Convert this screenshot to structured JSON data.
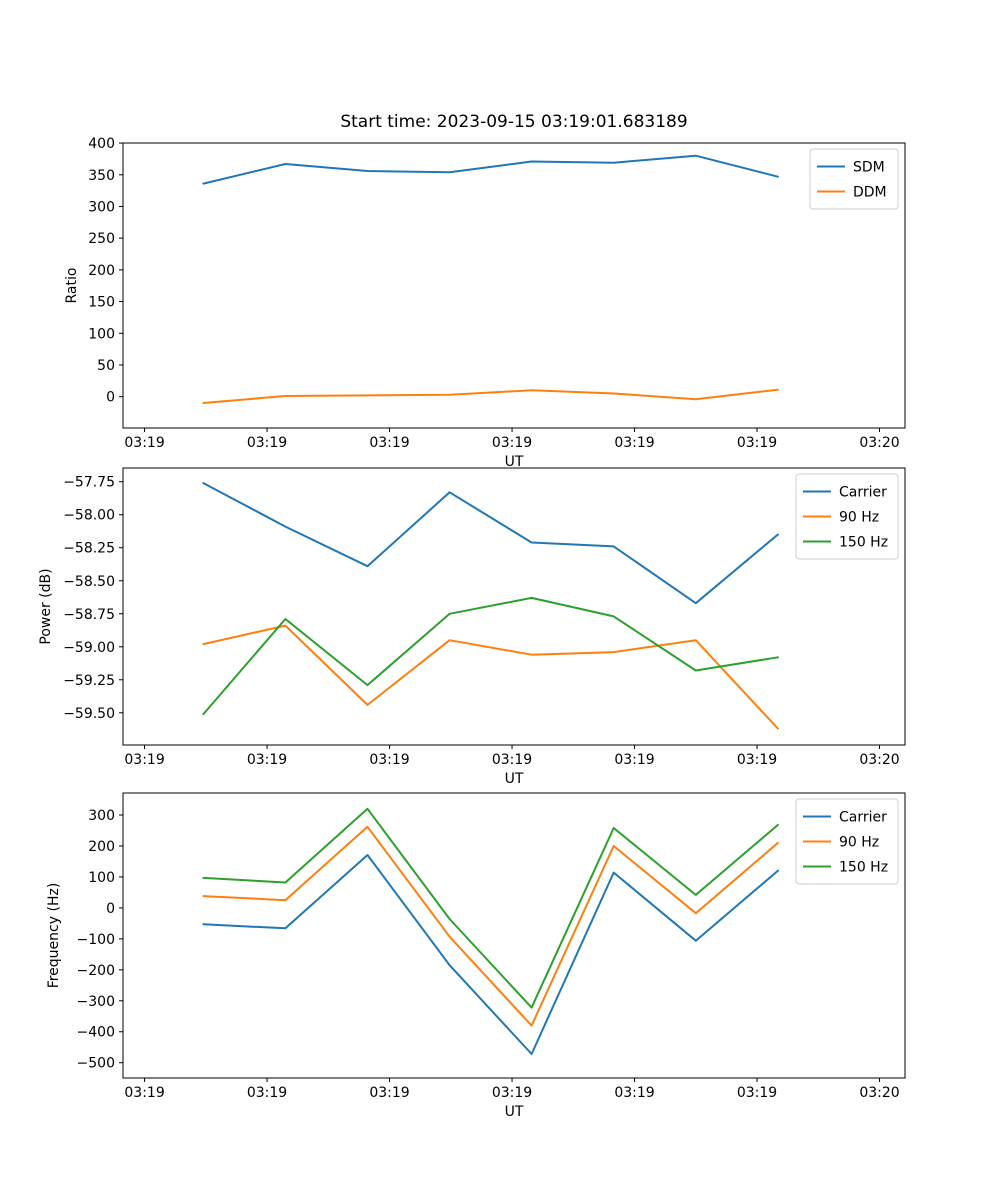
{
  "figure": {
    "title": "Start time: 2023-09-15 03:19:01.683189",
    "background": "#ffffff"
  },
  "colors": {
    "blue": "#1f77b4",
    "orange": "#ff7f0e",
    "green": "#2ca02c",
    "axis": "#000000",
    "legend_border": "#cccccc"
  },
  "chart_data": [
    {
      "type": "line",
      "title": "",
      "xlabel": "UT",
      "ylabel": "Ratio",
      "grid": false,
      "legend_position": "upper right",
      "x_seconds": [
        4.8,
        11.5,
        18.2,
        24.9,
        31.6,
        38.3,
        45.0,
        51.7
      ],
      "xlim_seconds": [
        -1.76,
        62.08
      ],
      "xticks": {
        "t": [
          0,
          10,
          20,
          30,
          40,
          50,
          60
        ],
        "labels": [
          "03:19",
          "03:19",
          "03:19",
          "03:19",
          "03:19",
          "03:19",
          "03:20"
        ]
      },
      "ylim": [
        -49.4,
        400.1
      ],
      "yticks": {
        "v": [
          0,
          50,
          100,
          150,
          200,
          250,
          300,
          350,
          400
        ],
        "labels": [
          "0",
          "50",
          "100",
          "150",
          "200",
          "250",
          "300",
          "350",
          "400"
        ]
      },
      "series": [
        {
          "name": "SDM",
          "color": "#1f77b4",
          "values": [
            336,
            367,
            356,
            354,
            371,
            369,
            380,
            347
          ]
        },
        {
          "name": "DDM",
          "color": "#ff7f0e",
          "values": [
            -10,
            1,
            2,
            3,
            10,
            5,
            -4,
            11
          ]
        }
      ]
    },
    {
      "type": "line",
      "title": "",
      "xlabel": "UT",
      "ylabel": "Power (dB)",
      "grid": false,
      "legend_position": "upper right",
      "x_seconds": [
        4.8,
        11.5,
        18.2,
        24.9,
        31.6,
        38.3,
        45.0,
        51.7
      ],
      "xlim_seconds": [
        -1.76,
        62.08
      ],
      "xticks": {
        "t": [
          0,
          10,
          20,
          30,
          40,
          50,
          60
        ],
        "labels": [
          "03:19",
          "03:19",
          "03:19",
          "03:19",
          "03:19",
          "03:19",
          "03:20"
        ]
      },
      "ylim": [
        -59.744,
        -57.646
      ],
      "yticks": {
        "v": [
          -57.75,
          -58.0,
          -58.25,
          -58.5,
          -58.75,
          -59.0,
          -59.25,
          -59.5
        ],
        "labels": [
          "−57.75",
          "−58.00",
          "−58.25",
          "−58.50",
          "−58.75",
          "−59.00",
          "−59.25",
          "−59.50"
        ]
      },
      "series": [
        {
          "name": "Carrier",
          "color": "#1f77b4",
          "values": [
            -57.76,
            -58.09,
            -58.39,
            -57.83,
            -58.21,
            -58.24,
            -58.67,
            -58.15
          ]
        },
        {
          "name": "90 Hz",
          "color": "#ff7f0e",
          "values": [
            -58.98,
            -58.84,
            -59.44,
            -58.95,
            -59.06,
            -59.04,
            -58.95,
            -59.62
          ]
        },
        {
          "name": "150 Hz",
          "color": "#2ca02c",
          "values": [
            -59.51,
            -58.79,
            -59.29,
            -58.75,
            -58.63,
            -58.77,
            -59.18,
            -59.08
          ]
        }
      ]
    },
    {
      "type": "line",
      "title": "",
      "xlabel": "UT",
      "ylabel": "Frequency (Hz)",
      "grid": false,
      "legend_position": "upper right",
      "x_seconds": [
        4.8,
        11.5,
        18.2,
        24.9,
        31.6,
        38.3,
        45.0,
        51.7
      ],
      "xlim_seconds": [
        -1.76,
        62.08
      ],
      "xticks": {
        "t": [
          0,
          10,
          20,
          30,
          40,
          50,
          60
        ],
        "labels": [
          "03:19",
          "03:19",
          "03:19",
          "03:19",
          "03:19",
          "03:19",
          "03:20"
        ]
      },
      "ylim": [
        -549.4,
        371.1
      ],
      "yticks": {
        "v": [
          300,
          200,
          100,
          0,
          -100,
          -200,
          -300,
          -400,
          -500
        ],
        "labels": [
          "300",
          "200",
          "100",
          "0",
          "−100",
          "−200",
          "−300",
          "−400",
          "−500"
        ]
      },
      "series": [
        {
          "name": "Carrier",
          "color": "#1f77b4",
          "values": [
            -53,
            -66,
            171,
            -185,
            -472,
            114,
            -106,
            120
          ]
        },
        {
          "name": "90 Hz",
          "color": "#ff7f0e",
          "values": [
            38,
            25,
            262,
            -93,
            -380,
            200,
            -17,
            210
          ]
        },
        {
          "name": "150 Hz",
          "color": "#2ca02c",
          "values": [
            97,
            82,
            320,
            -36,
            -322,
            258,
            42,
            268
          ]
        }
      ]
    }
  ]
}
